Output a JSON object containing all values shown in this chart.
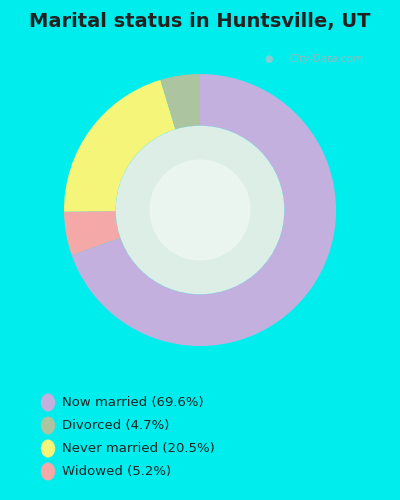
{
  "title": "Marital status in Huntsville, UT",
  "slices": [
    69.6,
    5.2,
    20.5,
    4.7
  ],
  "colors": [
    "#c4b0df",
    "#f5a8a8",
    "#f5f57a",
    "#adc4a0"
  ],
  "legend_colors": [
    "#c4b0df",
    "#adc4a0",
    "#f5f57a",
    "#f5a8a8"
  ],
  "legend_labels": [
    "Now married (69.6%)",
    "Divorced (4.7%)",
    "Never married (20.5%)",
    "Widowed (5.2%)"
  ],
  "background_cyan": "#00eded",
  "chart_bg": "#e8f5ec",
  "title_fontsize": 14,
  "title_color": "#222222",
  "watermark": "City-Data.com",
  "start_angle": 90,
  "donut_width": 0.38
}
